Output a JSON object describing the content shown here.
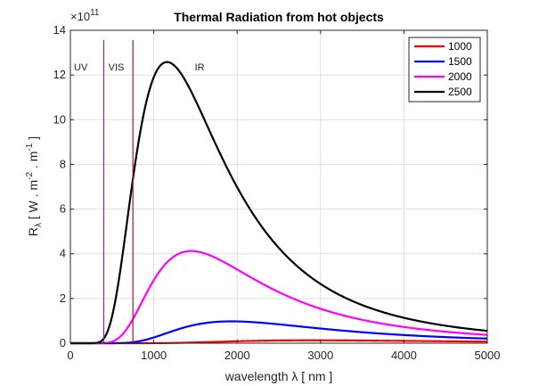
{
  "chart_data": {
    "type": "line",
    "title": "Thermal Radiation from hot objects",
    "xlabel": "wavelength   λ   [ nm ]",
    "ylabel_main": "R",
    "ylabel_sub": "λ",
    "ylabel_rest": "[ W . m",
    "ylabel_sup1": "-2",
    "ylabel_mid": " . m",
    "ylabel_sup2": "-1",
    "ylabel_end": " ]",
    "exponent_base": "×10",
    "exponent_power": "11",
    "xlim": [
      0,
      5000
    ],
    "ylim": [
      0,
      14
    ],
    "xticks": [
      0,
      1000,
      2000,
      3000,
      4000,
      5000
    ],
    "yticks": [
      0,
      2,
      4,
      6,
      8,
      10,
      12,
      14
    ],
    "grid": true,
    "legend_position": "top-right",
    "units_scale": 100000000000.0,
    "series": [
      {
        "name": "1000",
        "temperature": 1000,
        "color": "#ff0000"
      },
      {
        "name": "1500",
        "temperature": 1500,
        "color": "#0000ff"
      },
      {
        "name": "2000",
        "temperature": 2000,
        "color": "#ff00ff"
      },
      {
        "name": "2500",
        "temperature": 2500,
        "color": "#000000"
      }
    ],
    "regions": [
      {
        "label": "UV",
        "at": 125
      },
      {
        "label": "VIS",
        "at": 550
      },
      {
        "label": "IR",
        "at": 1550
      }
    ],
    "boundaries": [
      {
        "x": 400,
        "color": "#7e2f8e"
      },
      {
        "x": 750,
        "color": "#a2142f"
      }
    ],
    "peaks": {
      "1000": 0.13,
      "1500": 0.97,
      "2000": 4.11,
      "2500": 12.55
    }
  }
}
